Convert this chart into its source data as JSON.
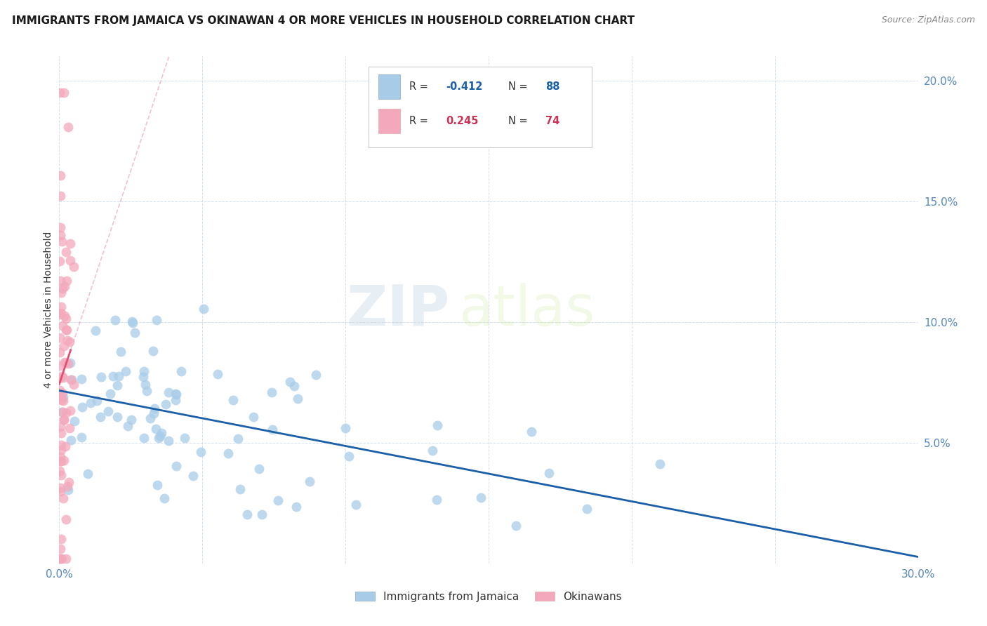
{
  "title": "IMMIGRANTS FROM JAMAICA VS OKINAWAN 4 OR MORE VEHICLES IN HOUSEHOLD CORRELATION CHART",
  "source": "Source: ZipAtlas.com",
  "ylabel": "4 or more Vehicles in Household",
  "xlim": [
    0.0,
    0.3
  ],
  "ylim": [
    0.0,
    0.21
  ],
  "background_color": "#ffffff",
  "blue_color": "#a8cce8",
  "pink_color": "#f4a8bc",
  "blue_line_color": "#1a5fa8",
  "pink_line_color": "#e05070",
  "pink_dash_color": "#e8aabb",
  "watermark_zip": "ZIP",
  "watermark_atlas": "atlas",
  "legend_label_blue": "Immigrants from Jamaica",
  "legend_label_pink": "Okinawans",
  "ytick_color": "#5588bb",
  "xtick_color": "#5588bb"
}
